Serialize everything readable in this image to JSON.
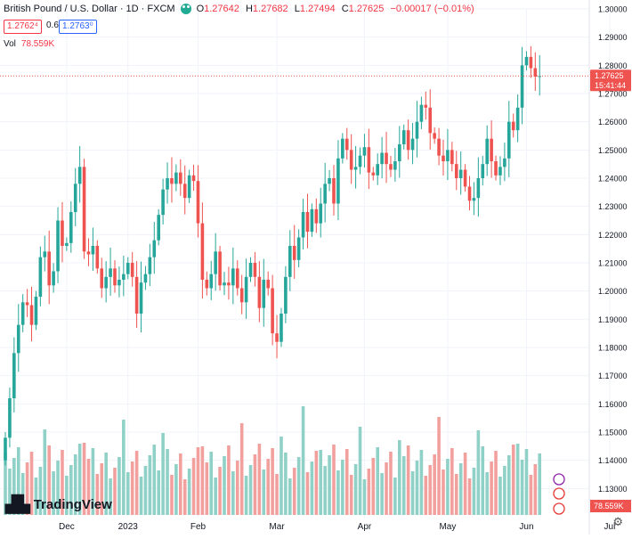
{
  "legend": {
    "symbol": "British Pound / U.S. Dollar · 1D · FXCM",
    "open_k": "O",
    "open": "1.27642",
    "high_k": "H",
    "high": "1.27682",
    "low_k": "L",
    "low": "1.27494",
    "close_k": "C",
    "close": "1.27625",
    "change": "−0.00017 (−0.01%)",
    "sell": "1.2762⁴",
    "spread": "0.6",
    "buy": "1.2763⁰",
    "vol_label": "Vol",
    "vol_value": "78.559K"
  },
  "brand": "TradingView",
  "colors": {
    "up": "#26a69a",
    "down": "#ef5350",
    "vol_up": "#8fd0c7",
    "vol_down": "#f2a09e",
    "price_line": "#ef5350"
  },
  "chart_data": {
    "type": "candlestick",
    "title": "British Pound / U.S. Dollar · 1D · FXCM",
    "ylim": [
      1.12,
      1.3
    ],
    "yticks": [
      1.13,
      1.14,
      1.15,
      1.16,
      1.17,
      1.18,
      1.19,
      1.2,
      1.21,
      1.22,
      1.23,
      1.24,
      1.25,
      1.26,
      1.27,
      1.28,
      1.29,
      1.3
    ],
    "ytick_labels": [
      "1.13000",
      "1.14000",
      "1.15000",
      "1.16000",
      "1.17000",
      "1.18000",
      "1.19000",
      "1.20000",
      "1.21000",
      "1.22000",
      "1.23000",
      "1.24000",
      "1.25000",
      "1.26000",
      "1.27000",
      "1.28000",
      "1.29000",
      "1.30000"
    ],
    "xticks": [
      "Dec",
      "2023",
      "Feb",
      "Mar",
      "Apr",
      "May",
      "Jun",
      "Jul"
    ],
    "xtick_index": [
      14,
      28,
      44,
      62,
      82,
      101,
      119,
      138
    ],
    "last_price": "1.27625",
    "countdown": "15:41:44",
    "volume_label": "78.559K",
    "grid": true,
    "close": [
      1.148,
      1.162,
      1.178,
      1.188,
      1.196,
      1.195,
      1.188,
      1.198,
      1.212,
      1.214,
      1.202,
      1.207,
      1.225,
      1.216,
      1.217,
      1.228,
      1.238,
      1.244,
      1.214,
      1.213,
      1.216,
      1.208,
      1.201,
      1.205,
      1.208,
      1.202,
      1.204,
      1.206,
      1.21,
      1.205,
      1.192,
      1.203,
      1.206,
      1.212,
      1.218,
      1.227,
      1.236,
      1.24,
      1.238,
      1.242,
      1.238,
      1.233,
      1.241,
      1.239,
      1.224,
      1.204,
      1.201,
      1.206,
      1.214,
      1.202,
      1.203,
      1.202,
      1.208,
      1.201,
      1.196,
      1.205,
      1.21,
      1.205,
      1.194,
      1.204,
      1.201,
      1.185,
      1.182,
      1.192,
      1.205,
      1.216,
      1.211,
      1.219,
      1.228,
      1.221,
      1.229,
      1.224,
      1.231,
      1.238,
      1.24,
      1.231,
      1.247,
      1.254,
      1.25,
      1.243,
      1.244,
      1.248,
      1.251,
      1.242,
      1.241,
      1.245,
      1.249,
      1.245,
      1.243,
      1.246,
      1.252,
      1.257,
      1.25,
      1.254,
      1.26,
      1.266,
      1.265,
      1.256,
      1.254,
      1.248,
      1.246,
      1.25,
      1.245,
      1.24,
      1.243,
      1.237,
      1.232,
      1.233,
      1.24,
      1.245,
      1.254,
      1.246,
      1.241,
      1.244,
      1.247,
      1.26,
      1.257,
      1.265,
      1.28,
      1.283,
      1.279,
      1.276,
      1.2762
    ]
  }
}
